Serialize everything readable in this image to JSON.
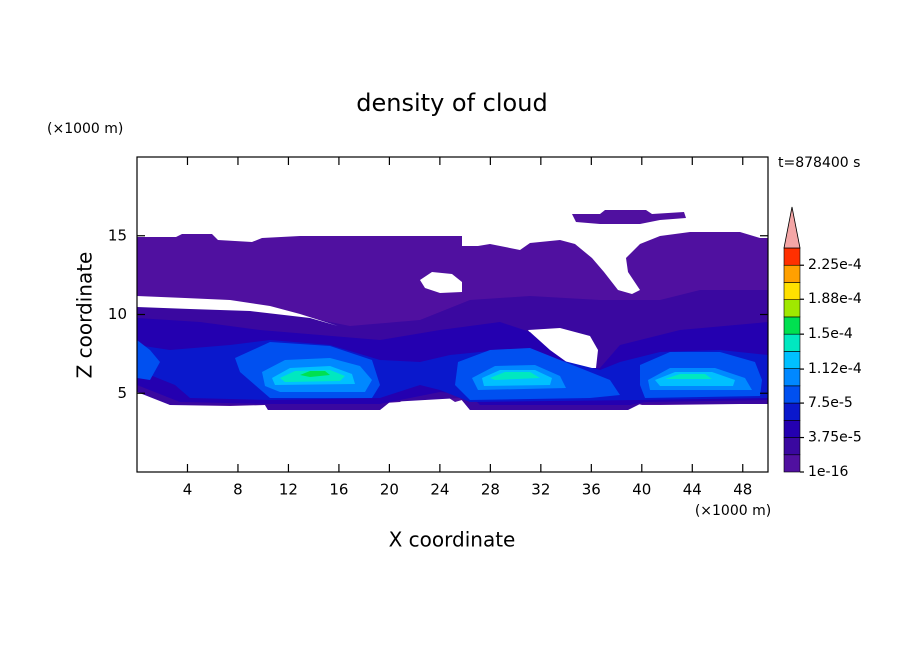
{
  "chart_data": {
    "type": "contour",
    "title": "density of cloud",
    "x_label": "X coordinate",
    "y_label": "Z coordinate",
    "x_unit": "(×1000 m)",
    "y_unit": "(×1000 m)",
    "annotation": "t=878400 s",
    "xlim": [
      0,
      50
    ],
    "ylim": [
      0,
      20
    ],
    "xticks": [
      4,
      8,
      12,
      16,
      20,
      24,
      28,
      32,
      36,
      40,
      44,
      48
    ],
    "yticks": [
      5,
      10,
      15
    ],
    "clim": [
      1e-16,
      0.00024375
    ],
    "levels": [
      1e-16,
      1.875e-05,
      3.75e-05,
      5.625e-05,
      7.5e-05,
      9.375e-05,
      0.0001125,
      0.00013125,
      0.00015,
      0.00016875,
      0.0001875,
      0.00020625,
      0.000225
    ],
    "colors": [
      "#5010a0",
      "#3a08a0",
      "#2400b0",
      "#0a18cc",
      "#0050f0",
      "#0088ff",
      "#00c0ff",
      "#00e8c0",
      "#00e050",
      "#a0e800",
      "#ffe000",
      "#ffa000",
      "#ff3000"
    ],
    "extend_color": "#f4a6a6",
    "cticks": [
      {
        "value": 1e-16,
        "label": "1e-16"
      },
      {
        "value": 3.75e-05,
        "label": "3.75e-5"
      },
      {
        "value": 7.5e-05,
        "label": "7.5e-5"
      },
      {
        "value": 0.000112,
        "label": "1.12e-4"
      },
      {
        "value": 0.00015,
        "label": "1.5e-4"
      },
      {
        "value": 0.000188,
        "label": "1.88e-4"
      },
      {
        "value": 0.000225,
        "label": "2.25e-4"
      }
    ]
  }
}
